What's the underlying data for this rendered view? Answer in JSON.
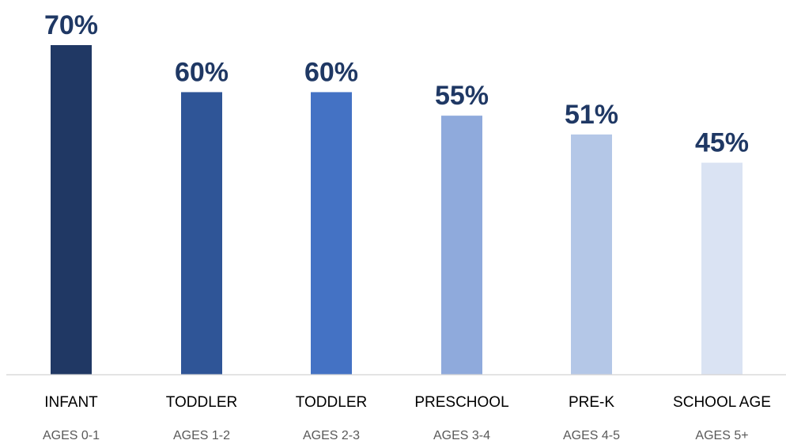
{
  "chart_data": {
    "type": "bar",
    "title": "",
    "xlabel": "",
    "ylabel": "",
    "ylim": [
      0,
      70
    ],
    "grid": false,
    "legend": "none",
    "categories": [
      "INFANT",
      "TODDLER",
      "TODDLER",
      "PRESCHOOL",
      "PRE-K",
      "SCHOOL AGE"
    ],
    "sublabels": [
      "AGES 0-1",
      "AGES 1-2",
      "AGES 2-3",
      "AGES 3-4",
      "AGES 4-5",
      "AGES 5+"
    ],
    "values": [
      70,
      60,
      60,
      55,
      51,
      45
    ],
    "value_labels": [
      "70%",
      "60%",
      "60%",
      "55%",
      "51%",
      "45%"
    ],
    "colors": [
      "#203864",
      "#2f5597",
      "#4472c4",
      "#8faadc",
      "#b4c7e7",
      "#dae3f3"
    ],
    "axis_color": "#d9d9d9",
    "label_color": "#1f3864"
  }
}
